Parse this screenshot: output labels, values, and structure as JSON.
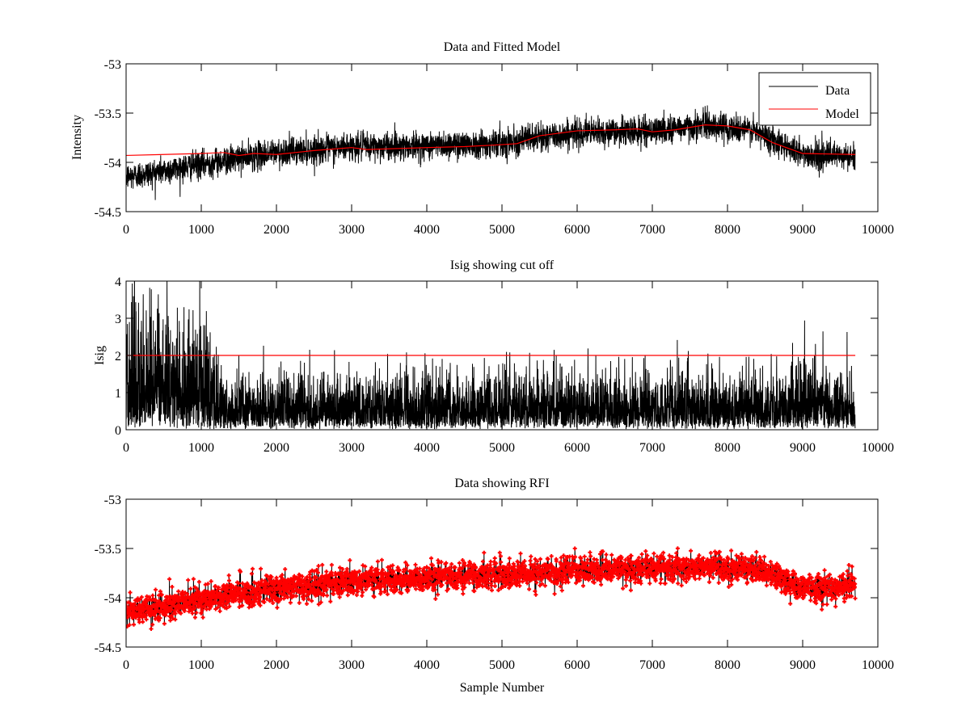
{
  "chart_data": [
    {
      "type": "line",
      "title": "Data and Fitted Model",
      "xlabel": "",
      "ylabel": "Intensity",
      "xlim": [
        0,
        10000
      ],
      "ylim": [
        -54.5,
        -53
      ],
      "xticks": [
        "0",
        "1000",
        "2000",
        "3000",
        "4000",
        "5000",
        "6000",
        "7000",
        "8000",
        "9000",
        "10000"
      ],
      "yticks": [
        "-53",
        "-53.5",
        "-54",
        "-54.5"
      ],
      "ytick_values": [
        -53,
        -53.5,
        -54,
        -54.5
      ],
      "legend": {
        "position": "top-right",
        "entries": [
          "Data",
          "Model"
        ]
      },
      "series": [
        {
          "name": "Data",
          "color": "#000000",
          "n_samples": 9700,
          "noise_sd": 0.07,
          "trend_x": [
            0,
            1000,
            2000,
            3000,
            4000,
            5000,
            5500,
            6000,
            7000,
            7700,
            8300,
            8700,
            9000,
            9700
          ],
          "trend_y": [
            -54.15,
            -54.02,
            -53.9,
            -53.84,
            -53.83,
            -53.8,
            -53.75,
            -53.7,
            -53.68,
            -53.62,
            -53.67,
            -53.8,
            -53.92,
            -53.95
          ]
        },
        {
          "name": "Model",
          "color": "#ff0000",
          "x": [
            0,
            500,
            1000,
            1300,
            1500,
            1700,
            2000,
            2500,
            3000,
            3200,
            4000,
            4500,
            5000,
            5200,
            5500,
            6000,
            6500,
            6800,
            7000,
            7300,
            7700,
            8000,
            8300,
            8600,
            9000,
            9700
          ],
          "y": [
            -53.93,
            -53.92,
            -53.91,
            -53.9,
            -53.93,
            -53.91,
            -53.92,
            -53.88,
            -53.85,
            -53.87,
            -53.85,
            -53.84,
            -53.82,
            -53.81,
            -53.73,
            -53.68,
            -53.67,
            -53.66,
            -53.69,
            -53.67,
            -53.62,
            -53.63,
            -53.67,
            -53.8,
            -53.91,
            -53.92
          ]
        }
      ]
    },
    {
      "type": "line",
      "title": "Isig showing cut off",
      "xlabel": "",
      "ylabel": "Isig",
      "xlim": [
        0,
        10000
      ],
      "ylim": [
        0,
        4
      ],
      "xticks": [
        "0",
        "1000",
        "2000",
        "3000",
        "4000",
        "5000",
        "6000",
        "7000",
        "8000",
        "9000",
        "10000"
      ],
      "yticks": [
        "0",
        "1",
        "2",
        "3",
        "4"
      ],
      "ytick_values": [
        0,
        1,
        2,
        3,
        4
      ],
      "series": [
        {
          "name": "Isig",
          "color": "#000000",
          "n_samples": 9700,
          "scale_x": [
            0,
            1000,
            1300,
            5000,
            8500,
            9000,
            9700
          ],
          "scale_y": [
            1.9,
            1.7,
            0.8,
            0.85,
            0.85,
            1.1,
            0.8
          ]
        },
        {
          "name": "Cut off",
          "color": "#ff0000",
          "x": [
            0,
            9700
          ],
          "y": [
            2,
            2
          ]
        }
      ]
    },
    {
      "type": "scatter",
      "title": "Data showing RFI",
      "xlabel": "Sample Number",
      "ylabel": "",
      "xlim": [
        0,
        10000
      ],
      "ylim": [
        -54.5,
        -53
      ],
      "xticks": [
        "0",
        "1000",
        "2000",
        "3000",
        "4000",
        "5000",
        "6000",
        "7000",
        "8000",
        "9000",
        "10000"
      ],
      "yticks": [
        "-53",
        "-53.5",
        "-54",
        "-54.5"
      ],
      "ytick_values": [
        -53,
        -53.5,
        -54,
        -54.5
      ],
      "series": [
        {
          "name": "Data",
          "color": "#000000",
          "n_samples": 9700,
          "noise_sd": 0.07,
          "trend_x": [
            0,
            1000,
            2000,
            3000,
            4000,
            5000,
            6000,
            7000,
            7700,
            8300,
            8700,
            9000,
            9700
          ],
          "trend_y": [
            -54.15,
            -54.02,
            -53.9,
            -53.84,
            -53.8,
            -53.76,
            -53.72,
            -53.7,
            -53.68,
            -53.7,
            -53.8,
            -53.9,
            -53.88
          ]
        },
        {
          "name": "RFI",
          "color": "#ff0000",
          "marker": "plus"
        }
      ]
    }
  ]
}
